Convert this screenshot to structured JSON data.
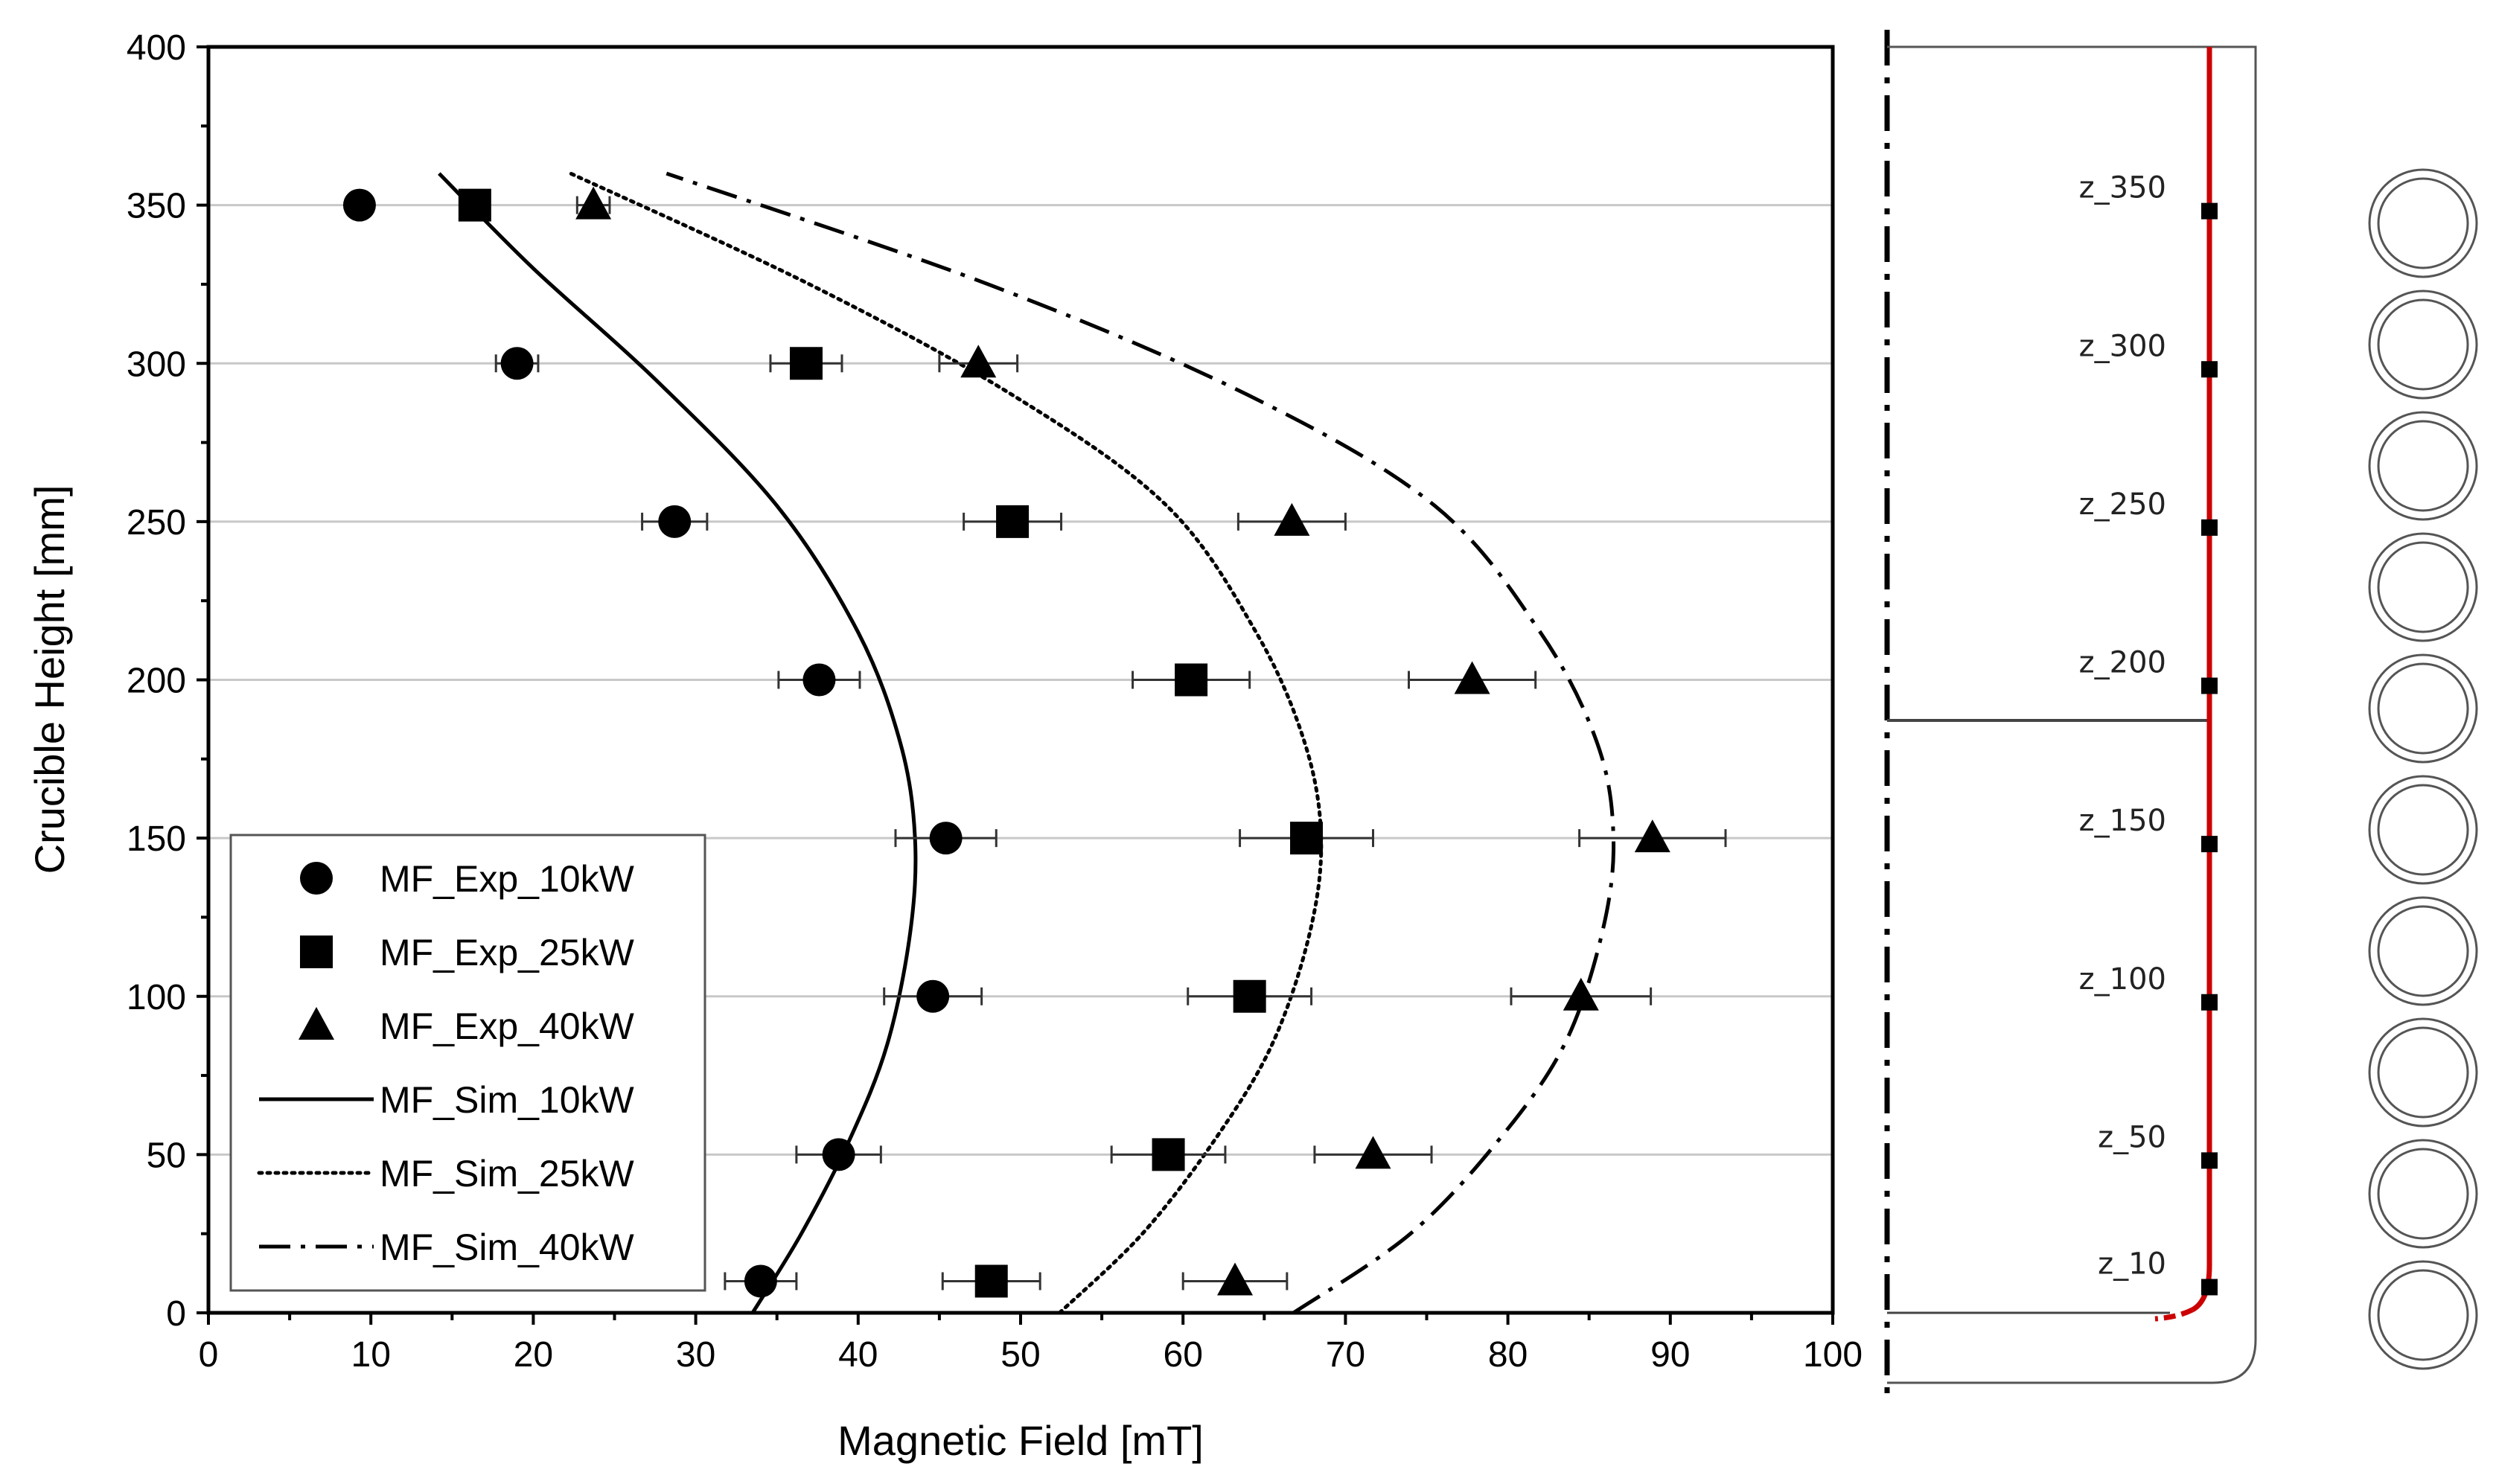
{
  "chart_data": {
    "type": "scatter",
    "title": "",
    "xlabel": "Magnetic Field [mT]",
    "ylabel": "Crucible Height [mm]",
    "xlim": [
      0,
      100
    ],
    "ylim": [
      0,
      400
    ],
    "xticks": [
      0,
      10,
      20,
      30,
      40,
      50,
      60,
      70,
      80,
      90,
      100
    ],
    "yticks": [
      0,
      50,
      100,
      150,
      200,
      250,
      300,
      350,
      400
    ],
    "grid": "horizontal",
    "legend_position": "bottom-left",
    "series": [
      {
        "name": "MF_Exp_10kW",
        "kind": "points",
        "marker": "circle",
        "x": [
          34.0,
          38.8,
          44.6,
          45.4,
          37.6,
          28.7,
          19.0,
          9.3
        ],
        "y": [
          10,
          50,
          100,
          150,
          200,
          250,
          300,
          350
        ],
        "err": [
          2.2,
          2.6,
          3.0,
          3.1,
          2.5,
          2.0,
          1.3,
          0.0
        ]
      },
      {
        "name": "MF_Exp_25kW",
        "kind": "points",
        "marker": "square",
        "x": [
          48.2,
          59.1,
          64.1,
          67.6,
          60.5,
          49.5,
          36.8,
          16.4
        ],
        "y": [
          10,
          50,
          100,
          150,
          200,
          250,
          300,
          350
        ],
        "err": [
          3.0,
          3.5,
          3.8,
          4.1,
          3.6,
          3.0,
          2.2,
          0.0
        ]
      },
      {
        "name": "MF_Exp_40kW",
        "kind": "points",
        "marker": "triangle",
        "x": [
          63.2,
          71.7,
          84.5,
          88.9,
          77.8,
          66.7,
          47.4,
          23.7
        ],
        "y": [
          10,
          50,
          100,
          150,
          200,
          250,
          300,
          350
        ],
        "err": [
          3.2,
          3.6,
          4.3,
          4.5,
          3.9,
          3.3,
          2.4,
          1.0
        ]
      },
      {
        "name": "MF_Sim_10kW",
        "kind": "line",
        "dash": "solid",
        "x": [
          33.5,
          36.5,
          39.5,
          41.8,
          43.2,
          43.5,
          42.6,
          40.0,
          35.0,
          27.5,
          20.0,
          14.2
        ],
        "y": [
          0,
          25,
          55,
          85,
          120,
          150,
          180,
          215,
          255,
          295,
          330,
          360
        ]
      },
      {
        "name": "MF_Sim_25kW",
        "kind": "line",
        "dash": "dotted",
        "x": [
          52.4,
          57.5,
          62.0,
          65.5,
          67.8,
          68.5,
          67.5,
          64.5,
          59.0,
          49.5,
          37.0,
          22.3
        ],
        "y": [
          0,
          25,
          55,
          85,
          120,
          150,
          180,
          215,
          255,
          290,
          325,
          360
        ]
      },
      {
        "name": "MF_Sim_40kW",
        "kind": "line",
        "dash": "dashdot",
        "x": [
          66.8,
          74.0,
          79.5,
          83.5,
          85.8,
          86.5,
          85.5,
          82.0,
          75.5,
          64.0,
          48.0,
          28.2
        ],
        "y": [
          0,
          25,
          55,
          85,
          120,
          150,
          180,
          215,
          255,
          290,
          325,
          360
        ]
      }
    ]
  },
  "schematic": {
    "sensor_labels": [
      "z_350",
      "z_300",
      "z_250",
      "z_200",
      "z_150",
      "z_100",
      "z_50",
      "z_10"
    ],
    "sensor_heights": [
      350,
      300,
      250,
      200,
      150,
      100,
      50,
      10
    ],
    "coil_count": 10,
    "probe_color": "#cc0000"
  }
}
